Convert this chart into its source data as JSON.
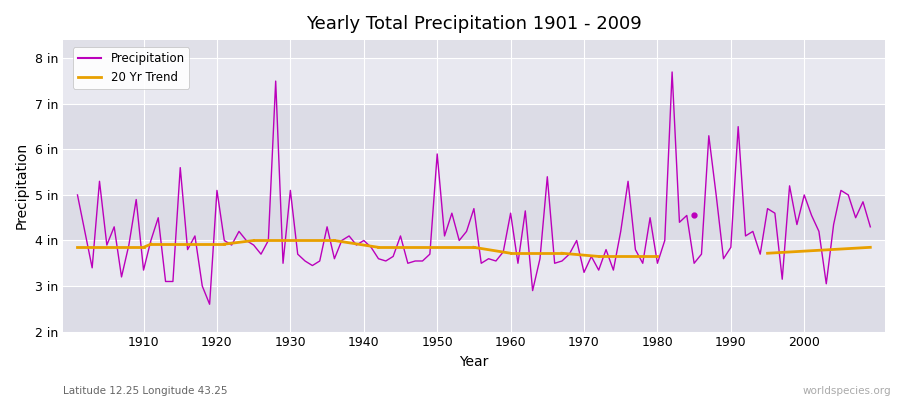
{
  "title": "Yearly Total Precipitation 1901 - 2009",
  "xlabel": "Year",
  "ylabel": "Precipitation",
  "subtitle": "Latitude 12.25 Longitude 43.25",
  "watermark": "worldspecies.org",
  "precip_color": "#bb00bb",
  "trend_color": "#e8a000",
  "bg_color": "#e0e0e8",
  "bg_stripe_colors": [
    "#dcdce6",
    "#e8e8f0"
  ],
  "ylim": [
    2.0,
    8.4
  ],
  "yticks": [
    2,
    3,
    4,
    5,
    6,
    7,
    8
  ],
  "ytick_labels": [
    "2 in",
    "3 in",
    "4 in",
    "5 in",
    "6 in",
    "7 in",
    "8 in"
  ],
  "xlim": [
    1899,
    2011
  ],
  "xticks": [
    1910,
    1920,
    1930,
    1940,
    1950,
    1960,
    1970,
    1980,
    1990,
    2000
  ],
  "years": [
    1901,
    1902,
    1903,
    1904,
    1905,
    1906,
    1907,
    1908,
    1909,
    1910,
    1911,
    1912,
    1913,
    1914,
    1915,
    1916,
    1917,
    1918,
    1919,
    1920,
    1921,
    1922,
    1923,
    1924,
    1925,
    1926,
    1927,
    1928,
    1929,
    1930,
    1931,
    1932,
    1933,
    1934,
    1935,
    1936,
    1937,
    1938,
    1939,
    1940,
    1941,
    1942,
    1943,
    1944,
    1945,
    1946,
    1947,
    1948,
    1949,
    1950,
    1951,
    1952,
    1953,
    1954,
    1955,
    1956,
    1957,
    1958,
    1959,
    1960,
    1961,
    1962,
    1963,
    1964,
    1965,
    1966,
    1967,
    1968,
    1969,
    1970,
    1971,
    1972,
    1973,
    1974,
    1975,
    1976,
    1977,
    1978,
    1979,
    1980,
    1981,
    1982,
    1983,
    1984,
    1985,
    1986,
    1987,
    1988,
    1989,
    1990,
    1991,
    1992,
    1993,
    1994,
    1995,
    1996,
    1997,
    1998,
    1999,
    2000,
    2001,
    2002,
    2003,
    2004,
    2005,
    2006,
    2007,
    2008,
    2009
  ],
  "precip": [
    5.0,
    4.2,
    3.4,
    5.3,
    3.9,
    4.3,
    3.2,
    3.9,
    4.9,
    3.35,
    4.0,
    4.5,
    3.1,
    3.1,
    5.6,
    3.8,
    4.1,
    3.0,
    2.6,
    5.1,
    4.0,
    3.9,
    4.2,
    4.0,
    3.9,
    3.7,
    4.0,
    7.5,
    3.5,
    5.1,
    3.7,
    3.55,
    3.45,
    3.55,
    4.3,
    3.6,
    4.0,
    4.1,
    3.9,
    4.0,
    3.85,
    3.6,
    3.55,
    3.65,
    4.1,
    3.5,
    3.55,
    3.55,
    3.7,
    5.9,
    4.1,
    4.6,
    4.0,
    4.2,
    4.7,
    3.5,
    3.6,
    3.55,
    3.75,
    4.6,
    3.5,
    4.65,
    2.9,
    3.6,
    5.4,
    3.5,
    3.55,
    3.7,
    4.0,
    3.3,
    3.65,
    3.35,
    3.8,
    3.35,
    4.2,
    5.3,
    3.8,
    3.5,
    4.5,
    3.5,
    4.0,
    7.7,
    4.4,
    4.55,
    3.5,
    3.7,
    6.3,
    5.0,
    3.6,
    3.85,
    6.5,
    4.1,
    4.2,
    3.7,
    4.7,
    4.6,
    3.15,
    5.2,
    4.35,
    5.0,
    4.55,
    4.2,
    3.05,
    4.35,
    5.1,
    5.0,
    4.5,
    4.85,
    4.3
  ],
  "trend_segments": [
    {
      "x": [
        1901,
        1910
      ],
      "y": [
        3.85,
        3.85
      ]
    },
    {
      "x": [
        1910,
        1911
      ],
      "y": [
        3.85,
        3.92
      ]
    },
    {
      "x": [
        1911,
        1921
      ],
      "y": [
        3.92,
        3.92
      ]
    },
    {
      "x": [
        1921,
        1925
      ],
      "y": [
        3.92,
        4.0
      ]
    },
    {
      "x": [
        1925,
        1936
      ],
      "y": [
        4.0,
        4.0
      ]
    },
    {
      "x": [
        1936,
        1942
      ],
      "y": [
        4.0,
        3.85
      ]
    },
    {
      "x": [
        1942,
        1955
      ],
      "y": [
        3.85,
        3.85
      ]
    },
    {
      "x": [
        1955,
        1960
      ],
      "y": [
        3.85,
        3.72
      ]
    },
    {
      "x": [
        1960,
        1967
      ],
      "y": [
        3.72,
        3.72
      ]
    },
    {
      "x": [
        1967,
        1972
      ],
      "y": [
        3.72,
        3.65
      ]
    },
    {
      "x": [
        1972,
        1980
      ],
      "y": [
        3.65,
        3.65
      ]
    },
    {
      "x": [
        1995,
        2009
      ],
      "y": [
        3.72,
        3.85
      ]
    }
  ],
  "isolated_dot_year": 1985,
  "isolated_dot_val": 4.55
}
